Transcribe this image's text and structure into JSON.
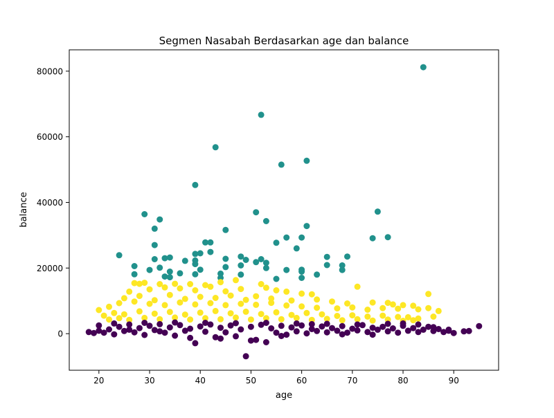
{
  "chart_data": {
    "type": "scatter",
    "title": "Segmen Nasabah Berdasarkan age dan balance",
    "xlabel": "age",
    "ylabel": "balance",
    "xlim": [
      14.15,
      98.85
    ],
    "ylim": [
      -11150,
      86500
    ],
    "x_ticks": [
      20,
      30,
      40,
      50,
      60,
      70,
      80,
      90
    ],
    "y_ticks": [
      0,
      20000,
      40000,
      60000,
      80000
    ],
    "y_tick_labels": [
      "0",
      "20000",
      "40000",
      "60000",
      "80000"
    ],
    "grid": false,
    "legend": "none",
    "colors": {
      "purple": "#440154",
      "teal": "#21918c",
      "yellow": "#fde725"
    },
    "series": [
      {
        "color": "#21918c",
        "points": [
          [
            84,
            81200
          ],
          [
            52,
            66700
          ],
          [
            43,
            56800
          ],
          [
            61,
            52700
          ],
          [
            56,
            51500
          ],
          [
            39,
            45300
          ],
          [
            51,
            37000
          ],
          [
            75,
            37200
          ],
          [
            29,
            36400
          ],
          [
            32,
            34800
          ],
          [
            53,
            34300
          ],
          [
            61,
            32800
          ],
          [
            31,
            32000
          ],
          [
            45,
            31600
          ],
          [
            74,
            29100
          ],
          [
            77,
            29400
          ],
          [
            57,
            29300
          ],
          [
            60,
            29300
          ],
          [
            55,
            27700
          ],
          [
            31,
            27000
          ],
          [
            59,
            26000
          ],
          [
            41,
            27800
          ],
          [
            42,
            27800
          ],
          [
            42,
            24900
          ],
          [
            39,
            24300
          ],
          [
            40,
            24500
          ],
          [
            24,
            23900
          ],
          [
            48,
            23500
          ],
          [
            69,
            23500
          ],
          [
            65,
            23400
          ],
          [
            33,
            23000
          ],
          [
            34,
            23200
          ],
          [
            45,
            22800
          ],
          [
            52,
            22700
          ],
          [
            49,
            22500
          ],
          [
            31,
            22700
          ],
          [
            37,
            22200
          ],
          [
            39,
            22300
          ],
          [
            51,
            21800
          ],
          [
            53,
            21600
          ],
          [
            39,
            21200
          ],
          [
            48,
            20800
          ],
          [
            65,
            20900
          ],
          [
            68,
            20800
          ],
          [
            27,
            20600
          ],
          [
            45,
            20300
          ],
          [
            32,
            20100
          ],
          [
            53,
            20000
          ],
          [
            30,
            19400
          ],
          [
            40,
            19500
          ],
          [
            57,
            19400
          ],
          [
            60,
            19500
          ],
          [
            68,
            19400
          ],
          [
            60,
            18900
          ],
          [
            34,
            18900
          ],
          [
            36,
            18400
          ],
          [
            44,
            18300
          ],
          [
            27,
            18100
          ],
          [
            39,
            18100
          ],
          [
            33,
            17400
          ],
          [
            48,
            18000
          ],
          [
            63,
            18000
          ],
          [
            34,
            17200
          ],
          [
            44,
            17000
          ],
          [
            60,
            17000
          ],
          [
            55,
            16700
          ]
        ]
      },
      {
        "color": "#fde725",
        "points": [
          [
            27,
            15400
          ],
          [
            28,
            15200
          ],
          [
            29,
            15500
          ],
          [
            32,
            15100
          ],
          [
            35,
            15200
          ],
          [
            38,
            15100
          ],
          [
            41,
            14800
          ],
          [
            44,
            15700
          ],
          [
            47,
            16300
          ],
          [
            52,
            15100
          ],
          [
            26,
            12800
          ],
          [
            30,
            13500
          ],
          [
            33,
            14100
          ],
          [
            36,
            13800
          ],
          [
            39,
            13200
          ],
          [
            42,
            14300
          ],
          [
            45,
            12900
          ],
          [
            48,
            13600
          ],
          [
            53,
            14000
          ],
          [
            55,
            13200
          ],
          [
            57,
            12800
          ],
          [
            60,
            12200
          ],
          [
            62,
            12000
          ],
          [
            71,
            14300
          ],
          [
            85,
            12100
          ],
          [
            25,
            10800
          ],
          [
            28,
            11500
          ],
          [
            31,
            10200
          ],
          [
            34,
            11800
          ],
          [
            37,
            10600
          ],
          [
            40,
            11200
          ],
          [
            43,
            10900
          ],
          [
            46,
            11600
          ],
          [
            49,
            10300
          ],
          [
            51,
            11400
          ],
          [
            54,
            10700
          ],
          [
            58,
            10100
          ],
          [
            63,
            10400
          ],
          [
            66,
            9800
          ],
          [
            69,
            9200
          ],
          [
            74,
            9500
          ],
          [
            77,
            9400
          ],
          [
            78,
            8900
          ],
          [
            80,
            8700
          ],
          [
            82,
            8500
          ],
          [
            20,
            7200
          ],
          [
            22,
            8200
          ],
          [
            24,
            9300
          ],
          [
            27,
            9800
          ],
          [
            30,
            9100
          ],
          [
            33,
            8700
          ],
          [
            36,
            9500
          ],
          [
            39,
            8900
          ],
          [
            42,
            9300
          ],
          [
            45,
            8700
          ],
          [
            48,
            9100
          ],
          [
            51,
            8800
          ],
          [
            54,
            9400
          ],
          [
            57,
            8600
          ],
          [
            60,
            8300
          ],
          [
            63,
            7900
          ],
          [
            67,
            7700
          ],
          [
            70,
            8000
          ],
          [
            73,
            7300
          ],
          [
            76,
            7800
          ],
          [
            79,
            7600
          ],
          [
            83,
            7400
          ],
          [
            85,
            7800
          ],
          [
            87,
            6900
          ],
          [
            21,
            5500
          ],
          [
            23,
            6300
          ],
          [
            25,
            5900
          ],
          [
            28,
            6800
          ],
          [
            31,
            6100
          ],
          [
            34,
            6600
          ],
          [
            37,
            5800
          ],
          [
            40,
            6400
          ],
          [
            43,
            6900
          ],
          [
            46,
            6200
          ],
          [
            49,
            6700
          ],
          [
            52,
            6000
          ],
          [
            55,
            6500
          ],
          [
            58,
            5700
          ],
          [
            61,
            6300
          ],
          [
            64,
            5900
          ],
          [
            67,
            5400
          ],
          [
            70,
            5600
          ],
          [
            73,
            5200
          ],
          [
            76,
            5500
          ],
          [
            79,
            5100
          ],
          [
            81,
            5000
          ],
          [
            83,
            4600
          ],
          [
            86,
            5200
          ],
          [
            22,
            4300
          ],
          [
            24,
            4700
          ],
          [
            26,
            4200
          ],
          [
            29,
            4800
          ],
          [
            32,
            4400
          ],
          [
            35,
            4900
          ],
          [
            38,
            4300
          ],
          [
            41,
            4700
          ],
          [
            44,
            4400
          ],
          [
            47,
            4900
          ],
          [
            50,
            4300
          ],
          [
            53,
            4700
          ],
          [
            56,
            4400
          ],
          [
            59,
            4800
          ],
          [
            62,
            4200
          ],
          [
            65,
            4500
          ],
          [
            68,
            4100
          ],
          [
            71,
            4400
          ],
          [
            74,
            4000
          ],
          [
            77,
            4300
          ],
          [
            80,
            3900
          ],
          [
            82,
            4100
          ]
        ]
      },
      {
        "color": "#440154",
        "points": [
          [
            18,
            500
          ],
          [
            19,
            200
          ],
          [
            20,
            900
          ],
          [
            21,
            300
          ],
          [
            22,
            1300
          ],
          [
            23,
            -200
          ],
          [
            24,
            2100
          ],
          [
            25,
            800
          ],
          [
            26,
            2800
          ],
          [
            27,
            400
          ],
          [
            28,
            1700
          ],
          [
            29,
            -400
          ],
          [
            30,
            2400
          ],
          [
            31,
            1100
          ],
          [
            32,
            2900
          ],
          [
            33,
            300
          ],
          [
            34,
            1900
          ],
          [
            35,
            -600
          ],
          [
            36,
            2600
          ],
          [
            37,
            900
          ],
          [
            38,
            1500
          ],
          [
            39,
            -2900
          ],
          [
            40,
            2200
          ],
          [
            41,
            600
          ],
          [
            42,
            2800
          ],
          [
            43,
            -1100
          ],
          [
            44,
            1800
          ],
          [
            45,
            400
          ],
          [
            46,
            2500
          ],
          [
            47,
            -800
          ],
          [
            48,
            1300
          ],
          [
            49,
            -6900
          ],
          [
            50,
            2100
          ],
          [
            51,
            -1900
          ],
          [
            52,
            2700
          ],
          [
            53,
            -2600
          ],
          [
            54,
            1600
          ],
          [
            55,
            300
          ],
          [
            56,
            2400
          ],
          [
            57,
            -300
          ],
          [
            58,
            1900
          ],
          [
            59,
            700
          ],
          [
            60,
            2500
          ],
          [
            61,
            100
          ],
          [
            62,
            1400
          ],
          [
            63,
            800
          ],
          [
            64,
            2200
          ],
          [
            65,
            400
          ],
          [
            66,
            1700
          ],
          [
            67,
            900
          ],
          [
            68,
            2300
          ],
          [
            69,
            300
          ],
          [
            70,
            1500
          ],
          [
            71,
            1000
          ],
          [
            72,
            2600
          ],
          [
            73,
            500
          ],
          [
            74,
            1800
          ],
          [
            75,
            1200
          ],
          [
            76,
            2100
          ],
          [
            77,
            700
          ],
          [
            78,
            1600
          ],
          [
            79,
            300
          ],
          [
            80,
            2400
          ],
          [
            81,
            900
          ],
          [
            82,
            1700
          ],
          [
            83,
            500
          ],
          [
            84,
            1200
          ],
          [
            85,
            2100
          ],
          [
            86,
            800
          ],
          [
            87,
            1400
          ],
          [
            88,
            500
          ],
          [
            89,
            900
          ],
          [
            90,
            200
          ],
          [
            92,
            700
          ],
          [
            93,
            800
          ],
          [
            95,
            2300
          ],
          [
            20,
            2500
          ],
          [
            23,
            3100
          ],
          [
            26,
            1200
          ],
          [
            29,
            3300
          ],
          [
            32,
            700
          ],
          [
            35,
            3400
          ],
          [
            38,
            -1300
          ],
          [
            41,
            3300
          ],
          [
            44,
            -1500
          ],
          [
            47,
            3200
          ],
          [
            50,
            -2100
          ],
          [
            53,
            3300
          ],
          [
            56,
            -700
          ],
          [
            59,
            3100
          ],
          [
            62,
            2900
          ],
          [
            65,
            3000
          ],
          [
            68,
            -200
          ],
          [
            71,
            2800
          ],
          [
            74,
            -300
          ],
          [
            77,
            3000
          ],
          [
            80,
            3100
          ],
          [
            83,
            2800
          ],
          [
            86,
            2000
          ],
          [
            89,
            1200
          ]
        ]
      }
    ]
  }
}
